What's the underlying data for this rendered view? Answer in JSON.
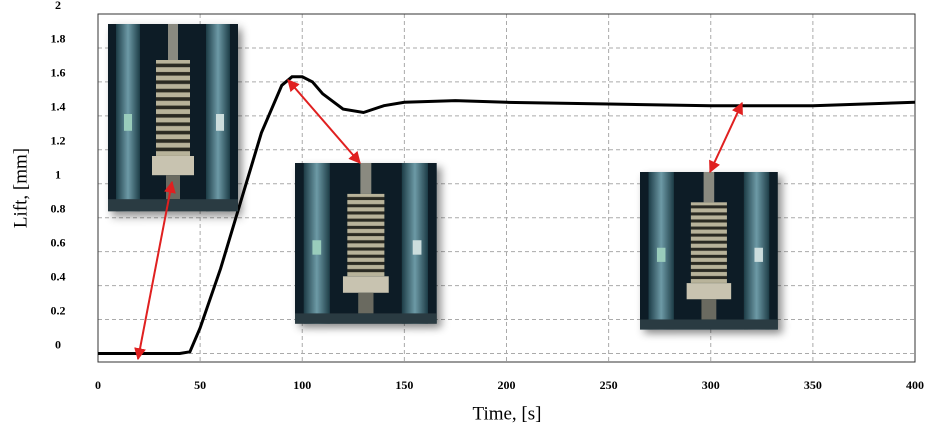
{
  "chart_data": {
    "type": "line",
    "xlabel": "Time, [s]",
    "ylabel": "Lift, [mm]",
    "x": [
      0,
      20,
      40,
      45,
      50,
      60,
      70,
      80,
      90,
      95,
      100,
      105,
      110,
      120,
      130,
      140,
      150,
      175,
      200,
      250,
      300,
      350,
      400
    ],
    "values": [
      0,
      0,
      0,
      0.01,
      0.15,
      0.5,
      0.9,
      1.3,
      1.58,
      1.63,
      1.63,
      1.6,
      1.53,
      1.44,
      1.42,
      1.46,
      1.48,
      1.49,
      1.48,
      1.47,
      1.46,
      1.46,
      1.48
    ],
    "color": "#000000",
    "xlim": [
      0,
      400
    ],
    "xticks": [
      0,
      50,
      100,
      150,
      200,
      250,
      300,
      350,
      400
    ],
    "ylim": [
      -0.05,
      2
    ],
    "yticks": [
      0,
      0.2,
      0.4,
      0.6,
      0.8,
      1,
      1.2,
      1.4,
      1.6,
      1.8,
      2
    ],
    "grid": true
  }
}
